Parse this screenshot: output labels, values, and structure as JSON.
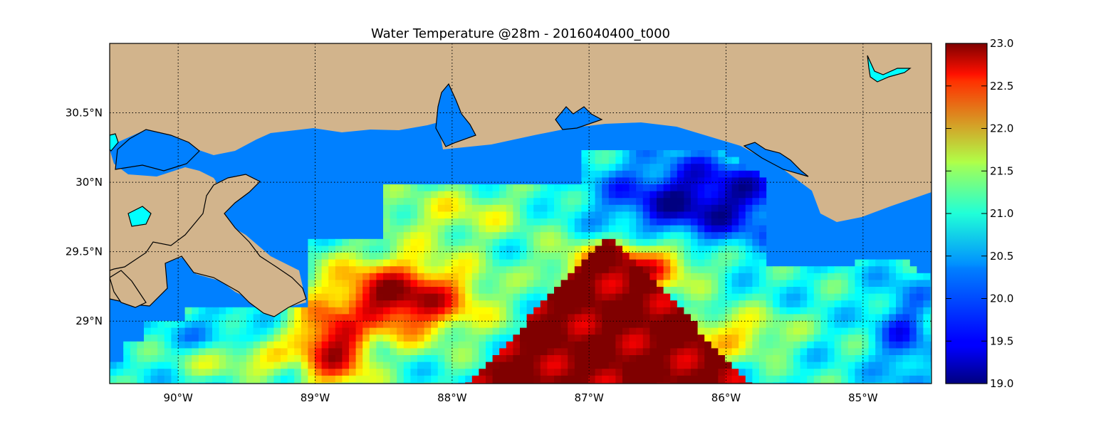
{
  "title": "Water Temperature @28m - 2016040400_t000",
  "map": {
    "lon_range": [
      -90.5,
      -84.5
    ],
    "lat_range": [
      28.55,
      31.0
    ],
    "lon_ticks": [
      {
        "value": -90,
        "label": "90°W"
      },
      {
        "value": -89,
        "label": "89°W"
      },
      {
        "value": -88,
        "label": "88°W"
      },
      {
        "value": -87,
        "label": "87°W"
      },
      {
        "value": -86,
        "label": "86°W"
      },
      {
        "value": -85,
        "label": "85°W"
      }
    ],
    "lat_ticks": [
      {
        "value": 30.5,
        "label": "30.5°N"
      },
      {
        "value": 30.0,
        "label": "30°N"
      },
      {
        "value": 29.5,
        "label": "29.5°N"
      },
      {
        "value": 29.0,
        "label": "29°N"
      }
    ],
    "gridlines": true,
    "land_color": "#d2b48c",
    "lake_color": "#00ffff",
    "out_of_range_ocean_color": "#0080ff"
  },
  "colorbar": {
    "min": 19.0,
    "max": 23.0,
    "colormap": "jet",
    "ticks": [
      "19.0",
      "19.5",
      "20.0",
      "20.5",
      "21.0",
      "21.5",
      "22.0",
      "22.5",
      "23.0"
    ]
  }
}
